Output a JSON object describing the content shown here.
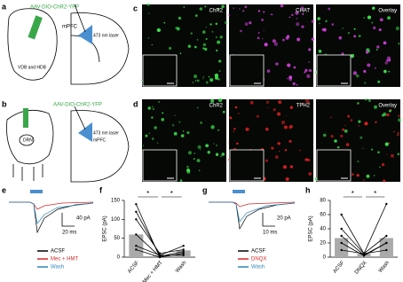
{
  "panels": {
    "a": {
      "letter": "a",
      "virus": "AAV-DIO-ChR2-YFP",
      "region": "VDB and HDB",
      "target": "mPFC",
      "laser": "473 nm laser"
    },
    "b": {
      "letter": "b",
      "virus": "AAV-DIO-ChR2-YFP",
      "region": "DRN",
      "target": "mPFC",
      "laser": "473 nm laser"
    },
    "c": {
      "letter": "c",
      "images": [
        "ChR2",
        "CHAT",
        "Overlay"
      ]
    },
    "d": {
      "letter": "d",
      "images": [
        "ChR2",
        "TPH2",
        "Overlay"
      ]
    },
    "e": {
      "letter": "e",
      "scale_y": "40 pA",
      "scale_x": "20 ms",
      "legend": [
        {
          "name": "ACSF",
          "color": "#000000"
        },
        {
          "name": "Mec + HMT",
          "color": "#d62728"
        },
        {
          "name": "Wash",
          "color": "#2b86b8"
        }
      ]
    },
    "g": {
      "letter": "g",
      "scale_y": "20 pA",
      "scale_x": "10 ms",
      "legend": [
        {
          "name": "ACSF",
          "color": "#000000"
        },
        {
          "name": "DNQX",
          "color": "#d62728"
        },
        {
          "name": "Wash",
          "color": "#2b86b8"
        }
      ]
    }
  },
  "chart_data": [
    {
      "type": "bar",
      "panel": "f",
      "y_label": "EPSC (pA)",
      "categories": [
        "ACSF",
        "Mec + HMT",
        "Wash"
      ],
      "values": [
        60,
        5,
        18
      ],
      "color": "#aaaaaa",
      "lines": [
        [
          140,
          0,
          10
        ],
        [
          120,
          5,
          5
        ],
        [
          100,
          10,
          20
        ],
        [
          60,
          2,
          15
        ],
        [
          30,
          5,
          30
        ],
        [
          20,
          0,
          10
        ]
      ],
      "annotations": [
        "*",
        "*"
      ],
      "ylim": [
        0,
        150
      ],
      "yticks": [
        0,
        50,
        100,
        150
      ]
    },
    {
      "type": "bar",
      "panel": "h",
      "y_label": "EPSC (pA)",
      "categories": [
        "ACSF",
        "DNQX",
        "Wash"
      ],
      "values": [
        27,
        5,
        27
      ],
      "color": "#aaaaaa",
      "lines": [
        [
          60,
          5,
          75
        ],
        [
          40,
          5,
          30
        ],
        [
          30,
          3,
          20
        ],
        [
          20,
          2,
          20
        ],
        [
          10,
          5,
          10
        ]
      ],
      "annotations": [
        "*",
        "*"
      ],
      "ylim": [
        0,
        80
      ],
      "yticks": [
        0,
        20,
        40,
        60,
        80
      ]
    }
  ]
}
